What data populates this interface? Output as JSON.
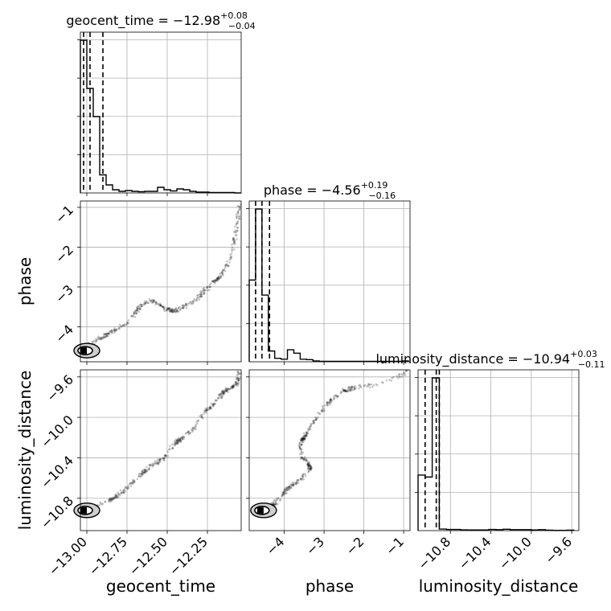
{
  "chart_data": {
    "type": "corner",
    "parameters": [
      "geocent_time",
      "phase",
      "luminosity_distance"
    ],
    "titles": [
      {
        "label": "geocent_time",
        "median": "−12.98",
        "plus": "+0.08",
        "minus": "−0.04"
      },
      {
        "label": "phase",
        "median": "−4.56",
        "plus": "+0.19",
        "minus": "−0.16"
      },
      {
        "label": "luminosity_distance",
        "median": "−10.94",
        "plus": "+0.03",
        "minus": "−0.11"
      }
    ],
    "axis_ranges": {
      "geocent_time": [
        -13.04,
        -12.04
      ],
      "phase": [
        -4.88,
        -0.84
      ],
      "luminosity_distance": [
        -11.12,
        -9.53
      ]
    },
    "ticks": {
      "geocent_time": [
        {
          "v": -13.0,
          "label": "−13.00"
        },
        {
          "v": -12.75,
          "label": "−12.75"
        },
        {
          "v": -12.5,
          "label": "−12.50"
        },
        {
          "v": -12.25,
          "label": "−12.25"
        }
      ],
      "phase": [
        {
          "v": -4,
          "label": "−4"
        },
        {
          "v": -3,
          "label": "−3"
        },
        {
          "v": -2,
          "label": "−2"
        },
        {
          "v": -1,
          "label": "−1"
        }
      ],
      "luminosity_distance": [
        {
          "v": -10.8,
          "label": "−10.8"
        },
        {
          "v": -10.4,
          "label": "−10.4"
        },
        {
          "v": -10.0,
          "label": "−10.0"
        },
        {
          "v": -9.6,
          "label": "−9.6"
        }
      ]
    },
    "quantile_lines": {
      "geocent_time": [
        -13.02,
        -12.98,
        -12.9
      ],
      "phase": [
        -4.72,
        -4.56,
        -4.37
      ],
      "luminosity_distance": [
        -11.05,
        -10.94,
        -10.91
      ]
    },
    "histograms": {
      "geocent_time": {
        "edges": [
          -13.04,
          -13.0,
          -12.96,
          -12.92,
          -12.88,
          -12.84,
          -12.8,
          -12.76,
          -12.72,
          -12.68,
          -12.64,
          -12.6,
          -12.56,
          -12.52,
          -12.48,
          -12.44,
          -12.4,
          -12.36,
          -12.32,
          -12.28,
          -12.24,
          -12.2,
          -12.16,
          -12.12,
          -12.08,
          -12.04
        ],
        "counts": [
          380,
          260,
          190,
          45,
          20,
          8,
          4,
          6,
          4,
          3,
          4,
          4,
          14,
          8,
          5,
          10,
          8,
          4,
          2,
          2,
          1,
          1,
          1,
          1,
          0
        ]
      },
      "phase": {
        "edges": [
          -4.88,
          -4.72,
          -4.56,
          -4.4,
          -4.24,
          -4.08,
          -3.92,
          -3.76,
          -3.6,
          -3.44,
          -3.28,
          -3.12,
          -2.96,
          -2.8,
          -2.64,
          -2.48,
          -2.32,
          -2.16,
          -2.0,
          -1.84,
          -1.68,
          -1.52,
          -1.36,
          -1.2,
          -1.04,
          -0.88
        ],
        "counts": [
          190,
          355,
          155,
          25,
          8,
          6,
          28,
          20,
          6,
          5,
          2,
          1,
          1,
          1,
          1,
          1,
          1,
          1,
          1,
          1,
          1,
          1,
          1,
          1,
          2
        ]
      },
      "luminosity_distance": {
        "edges": [
          -11.12,
          -11.05,
          -10.98,
          -10.91,
          -10.84,
          -10.77,
          -10.7,
          -10.63,
          -10.56,
          -10.49,
          -10.42,
          -10.35,
          -10.28,
          -10.21,
          -10.14,
          -10.07,
          -10.0,
          -9.93,
          -9.86,
          -9.79,
          -9.72,
          -9.65,
          -9.58
        ],
        "counts": [
          280,
          270,
          770,
          8,
          6,
          6,
          4,
          3,
          3,
          3,
          6,
          5,
          7,
          5,
          5,
          5,
          3,
          5,
          2,
          1,
          1,
          2
        ]
      }
    },
    "trajectory": [
      {
        "t": -13.02,
        "p": -4.6,
        "d": -10.92
      },
      {
        "t": -12.95,
        "p": -4.35,
        "d": -10.88
      },
      {
        "t": -12.85,
        "p": -4.15,
        "d": -10.82
      },
      {
        "t": -12.75,
        "p": -3.9,
        "d": -10.7
      },
      {
        "t": -12.68,
        "p": -3.55,
        "d": -10.6
      },
      {
        "t": -12.62,
        "p": -3.35,
        "d": -10.5
      },
      {
        "t": -12.57,
        "p": -3.38,
        "d": -10.45
      },
      {
        "t": -12.52,
        "p": -3.55,
        "d": -10.4
      },
      {
        "t": -12.45,
        "p": -3.6,
        "d": -10.25
      },
      {
        "t": -12.4,
        "p": -3.5,
        "d": -10.2
      },
      {
        "t": -12.33,
        "p": -3.35,
        "d": -10.1
      },
      {
        "t": -12.27,
        "p": -3.1,
        "d": -9.95
      },
      {
        "t": -12.2,
        "p": -2.85,
        "d": -9.85
      },
      {
        "t": -12.14,
        "p": -2.55,
        "d": -9.74
      },
      {
        "t": -12.1,
        "p": -2.15,
        "d": -9.7
      },
      {
        "t": -12.07,
        "p": -1.6,
        "d": -9.68
      },
      {
        "t": -12.05,
        "p": -0.9,
        "d": -9.55
      }
    ]
  }
}
